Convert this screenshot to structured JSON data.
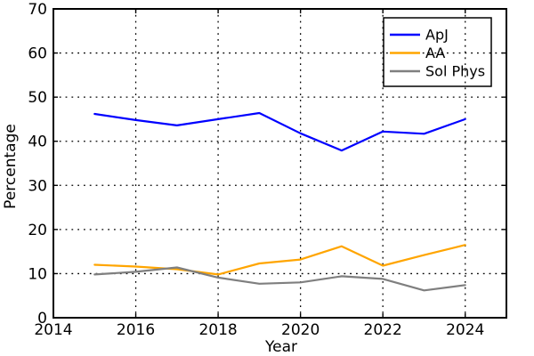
{
  "figure": {
    "background": "#ffffff",
    "frame_color": "#000000"
  },
  "chart_data": {
    "type": "line",
    "title": "",
    "xlabel": "Year",
    "ylabel": "Percentage",
    "xlim": [
      2014,
      2025
    ],
    "ylim": [
      0,
      70
    ],
    "x_ticks": [
      2014,
      2016,
      2018,
      2020,
      2022,
      2024
    ],
    "y_ticks": [
      0,
      10,
      20,
      30,
      40,
      50,
      60,
      70
    ],
    "grid": true,
    "grid_style": "dotted",
    "legend_position": "upper right",
    "x": [
      2015,
      2016,
      2017,
      2018,
      2019,
      2020,
      2021,
      2022,
      2023,
      2024
    ],
    "series": [
      {
        "name": "ApJ",
        "color": "#0000ff",
        "values": [
          46.2,
          44.8,
          43.6,
          45.0,
          46.4,
          41.8,
          37.9,
          42.2,
          41.7,
          45.0
        ]
      },
      {
        "name": "AA",
        "color": "#ffa500",
        "values": [
          12.0,
          11.6,
          11.0,
          9.8,
          12.3,
          13.2,
          16.2,
          11.8,
          14.2,
          16.5
        ]
      },
      {
        "name": "Sol Phys",
        "color": "#7f7f7f",
        "values": [
          9.8,
          10.4,
          11.4,
          9.1,
          7.7,
          8.0,
          9.4,
          8.8,
          6.2,
          7.4
        ]
      }
    ]
  }
}
